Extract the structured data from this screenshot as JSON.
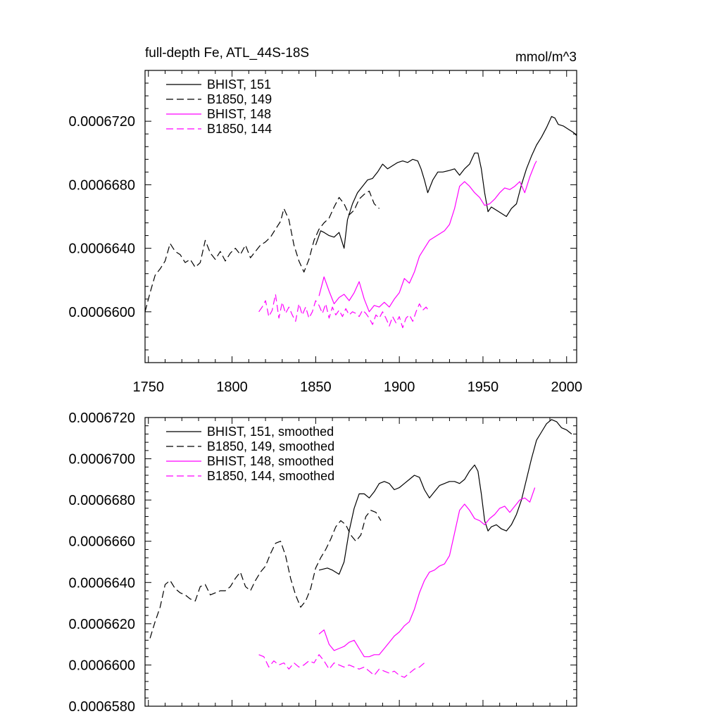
{
  "page": {
    "title_left": "full-depth Fe, ATL_44S-18S",
    "title_right": "mmol/m^3"
  },
  "colors": {
    "black": "#000000",
    "magenta": "#ff00ff"
  },
  "chart_data": [
    {
      "type": "line",
      "id": "top",
      "title": "full-depth Fe, ATL_44S-18S",
      "units": "mmol/m^3",
      "xlim": [
        1748,
        2006
      ],
      "ylim": [
        0.0006568,
        0.0006752
      ],
      "xticks": [
        1750,
        1800,
        1850,
        1900,
        1950,
        2000
      ],
      "xtick_labels": [
        "1750",
        "1800",
        "1850",
        "1900",
        "1950",
        "2000"
      ],
      "yticks": [
        0.00066,
        0.000664,
        0.000668,
        0.000672
      ],
      "ytick_labels": [
        "0.0006600",
        "0.0006640",
        "0.0006680",
        "0.0006720"
      ],
      "legend_position": "top-left",
      "series": [
        {
          "name": "BHIST, 151",
          "color": "#000000",
          "dash": "solid",
          "x": [
            1850,
            1853,
            1855,
            1858,
            1861,
            1864,
            1867,
            1869,
            1872,
            1875,
            1878,
            1881,
            1884,
            1887,
            1890,
            1893,
            1896,
            1899,
            1902,
            1905,
            1908,
            1911,
            1913,
            1915,
            1917,
            1920,
            1923,
            1926,
            1930,
            1933,
            1936,
            1939,
            1942,
            1945,
            1947,
            1949,
            1951,
            1953,
            1955,
            1958,
            1961,
            1964,
            1967,
            1970,
            1973,
            1976,
            1979,
            1982,
            1985,
            1988,
            1991,
            1993,
            1995,
            1998,
            2001,
            2004,
            2006
          ],
          "y": [
            0.0006642,
            0.0006651,
            0.000665,
            0.0006648,
            0.0006647,
            0.000665,
            0.000664,
            0.0006658,
            0.0006668,
            0.0006675,
            0.0006679,
            0.0006683,
            0.0006684,
            0.0006688,
            0.0006693,
            0.000669,
            0.0006692,
            0.0006694,
            0.0006695,
            0.0006694,
            0.0006696,
            0.0006695,
            0.000669,
            0.0006683,
            0.0006675,
            0.0006683,
            0.0006688,
            0.0006688,
            0.0006689,
            0.000669,
            0.0006686,
            0.000669,
            0.0006693,
            0.00067,
            0.00067,
            0.000669,
            0.0006675,
            0.0006663,
            0.0006666,
            0.0006664,
            0.0006662,
            0.000666,
            0.0006665,
            0.0006668,
            0.000668,
            0.000669,
            0.0006698,
            0.0006705,
            0.000671,
            0.0006716,
            0.0006723,
            0.0006722,
            0.0006718,
            0.0006717,
            0.0006715,
            0.0006713,
            0.0006711
          ]
        },
        {
          "name": "B1850, 149",
          "color": "#000000",
          "dash": "dashed",
          "x": [
            1748,
            1751,
            1754,
            1757,
            1760,
            1763,
            1766,
            1769,
            1772,
            1775,
            1778,
            1781,
            1784,
            1787,
            1790,
            1793,
            1796,
            1799,
            1802,
            1805,
            1808,
            1811,
            1814,
            1817,
            1820,
            1823,
            1826,
            1829,
            1831,
            1834,
            1837,
            1840,
            1843,
            1846,
            1849,
            1852,
            1855,
            1858,
            1861,
            1864,
            1867,
            1870,
            1873,
            1876,
            1879,
            1882,
            1885,
            1888
          ],
          "y": [
            0.00066,
            0.0006612,
            0.0006623,
            0.0006627,
            0.0006632,
            0.0006643,
            0.0006638,
            0.0006636,
            0.0006631,
            0.0006633,
            0.0006628,
            0.0006631,
            0.0006645,
            0.0006637,
            0.0006633,
            0.0006638,
            0.0006632,
            0.0006637,
            0.000664,
            0.0006636,
            0.0006642,
            0.0006634,
            0.0006638,
            0.0006642,
            0.0006644,
            0.0006647,
            0.0006652,
            0.0006657,
            0.0006665,
            0.0006658,
            0.0006642,
            0.0006632,
            0.0006625,
            0.0006633,
            0.0006645,
            0.0006652,
            0.0006656,
            0.0006659,
            0.0006666,
            0.0006672,
            0.0006668,
            0.0006661,
            0.0006664,
            0.0006671,
            0.0006674,
            0.0006676,
            0.0006668,
            0.0006665
          ]
        },
        {
          "name": "BHIST, 148",
          "color": "#ff00ff",
          "dash": "solid",
          "x": [
            1852,
            1855,
            1858,
            1861,
            1864,
            1867,
            1870,
            1873,
            1876,
            1879,
            1882,
            1885,
            1888,
            1891,
            1894,
            1897,
            1900,
            1903,
            1906,
            1909,
            1912,
            1915,
            1918,
            1921,
            1924,
            1927,
            1930,
            1933,
            1936,
            1939,
            1942,
            1945,
            1948,
            1951,
            1954,
            1957,
            1960,
            1963,
            1966,
            1969,
            1972,
            1975,
            1978,
            1981,
            1982
          ],
          "y": [
            0.000661,
            0.0006622,
            0.0006613,
            0.0006605,
            0.0006609,
            0.0006611,
            0.0006607,
            0.0006612,
            0.0006619,
            0.0006608,
            0.00066,
            0.0006604,
            0.0006603,
            0.0006606,
            0.0006603,
            0.0006608,
            0.0006612,
            0.0006621,
            0.0006618,
            0.0006625,
            0.0006635,
            0.000664,
            0.0006645,
            0.0006647,
            0.0006649,
            0.0006651,
            0.0006655,
            0.0006665,
            0.0006679,
            0.0006682,
            0.0006679,
            0.0006675,
            0.0006672,
            0.0006667,
            0.0006668,
            0.0006671,
            0.0006675,
            0.0006678,
            0.0006677,
            0.0006679,
            0.0006682,
            0.0006675,
            0.0006685,
            0.0006693,
            0.0006695
          ]
        },
        {
          "name": "B1850, 144",
          "color": "#ff00ff",
          "dash": "dashed",
          "x": [
            1816,
            1818,
            1820,
            1822,
            1824,
            1826,
            1828,
            1830,
            1832,
            1834,
            1836,
            1838,
            1840,
            1842,
            1844,
            1846,
            1848,
            1850,
            1852,
            1854,
            1856,
            1858,
            1860,
            1862,
            1864,
            1866,
            1868,
            1870,
            1872,
            1874,
            1876,
            1878,
            1880,
            1882,
            1884,
            1886,
            1888,
            1890,
            1892,
            1894,
            1896,
            1898,
            1900,
            1902,
            1904,
            1906,
            1908,
            1910,
            1912,
            1914,
            1916,
            1918
          ],
          "y": [
            0.00066,
            0.0006603,
            0.0006607,
            0.0006597,
            0.0006601,
            0.0006611,
            0.0006596,
            0.0006606,
            0.0006599,
            0.0006603,
            0.0006598,
            0.0006594,
            0.0006605,
            0.0006598,
            0.0006603,
            0.0006596,
            0.00066,
            0.0006607,
            0.0006604,
            0.0006599,
            0.0006605,
            0.0006596,
            0.0006603,
            0.0006598,
            0.0006601,
            0.0006597,
            0.0006602,
            0.0006598,
            0.00066,
            0.0006599,
            0.0006597,
            0.0006601,
            0.0006599,
            0.0006596,
            0.0006592,
            0.0006598,
            0.0006596,
            0.00066,
            0.0006596,
            0.0006591,
            0.0006597,
            0.0006593,
            0.0006597,
            0.000659,
            0.0006596,
            0.0006598,
            0.0006594,
            0.00066,
            0.0006605,
            0.0006601,
            0.0006603,
            0.00066
          ]
        }
      ]
    },
    {
      "type": "line",
      "id": "bottom",
      "xlim": [
        1748,
        2006
      ],
      "ylim": [
        0.000658,
        0.000672
      ],
      "xticks": [
        1750,
        1800,
        1850,
        1900,
        1950,
        2000
      ],
      "xtick_labels": [],
      "yticks": [
        0.000658,
        0.00066,
        0.000662,
        0.000664,
        0.000666,
        0.000668,
        0.00067,
        0.000672
      ],
      "ytick_labels": [
        "0.0006580",
        "0.0006600",
        "0.0006620",
        "0.0006640",
        "0.0006660",
        "0.0006680",
        "0.0006700",
        "0.0006720"
      ],
      "legend_position": "top-left",
      "series": [
        {
          "name": "BHIST, 151, smoothed",
          "color": "#000000",
          "dash": "solid",
          "x": [
            1852,
            1857,
            1860,
            1864,
            1867,
            1870,
            1873,
            1876,
            1879,
            1882,
            1885,
            1888,
            1891,
            1894,
            1897,
            1900,
            1903,
            1906,
            1909,
            1912,
            1915,
            1918,
            1921,
            1924,
            1927,
            1930,
            1933,
            1936,
            1939,
            1942,
            1945,
            1947,
            1949,
            1951,
            1953,
            1955,
            1958,
            1961,
            1964,
            1967,
            1970,
            1973,
            1976,
            1979,
            1982,
            1985,
            1988,
            1991,
            1994,
            1997,
            2000,
            2003
          ],
          "y": [
            0.0006646,
            0.0006647,
            0.0006646,
            0.0006644,
            0.000665,
            0.0006665,
            0.0006676,
            0.0006683,
            0.0006683,
            0.0006681,
            0.0006684,
            0.0006688,
            0.0006689,
            0.0006688,
            0.0006685,
            0.0006686,
            0.0006688,
            0.000669,
            0.0006692,
            0.0006691,
            0.0006685,
            0.0006681,
            0.0006684,
            0.0006687,
            0.0006688,
            0.0006689,
            0.0006689,
            0.0006688,
            0.000669,
            0.0006694,
            0.0006697,
            0.0006694,
            0.0006683,
            0.000667,
            0.0006665,
            0.0006667,
            0.0006668,
            0.0006666,
            0.0006665,
            0.0006668,
            0.0006673,
            0.000668,
            0.000669,
            0.00067,
            0.0006709,
            0.0006713,
            0.0006717,
            0.0006719,
            0.0006718,
            0.0006715,
            0.0006714,
            0.0006712
          ]
        },
        {
          "name": "B1850, 149, smoothed",
          "color": "#000000",
          "dash": "dashed",
          "x": [
            1751,
            1754,
            1757,
            1760,
            1763,
            1766,
            1769,
            1772,
            1775,
            1778,
            1781,
            1784,
            1787,
            1790,
            1793,
            1796,
            1799,
            1802,
            1805,
            1808,
            1811,
            1814,
            1817,
            1820,
            1823,
            1826,
            1829,
            1832,
            1835,
            1838,
            1841,
            1844,
            1847,
            1850,
            1853,
            1856,
            1859,
            1862,
            1865,
            1868,
            1871,
            1874,
            1877,
            1880,
            1883,
            1886,
            1889
          ],
          "y": [
            0.0006613,
            0.0006621,
            0.0006628,
            0.0006639,
            0.0006641,
            0.0006637,
            0.0006635,
            0.0006634,
            0.0006632,
            0.0006631,
            0.0006638,
            0.0006639,
            0.0006634,
            0.0006635,
            0.0006636,
            0.0006636,
            0.0006638,
            0.0006642,
            0.0006645,
            0.0006638,
            0.0006636,
            0.0006641,
            0.0006645,
            0.0006648,
            0.0006654,
            0.0006659,
            0.000666,
            0.0006653,
            0.0006642,
            0.0006634,
            0.0006628,
            0.0006631,
            0.0006637,
            0.0006647,
            0.0006652,
            0.0006656,
            0.0006661,
            0.0006667,
            0.000667,
            0.0006668,
            0.0006663,
            0.000666,
            0.0006663,
            0.0006672,
            0.0006675,
            0.0006674,
            0.000667
          ]
        },
        {
          "name": "BHIST, 148, smoothed",
          "color": "#ff00ff",
          "dash": "solid",
          "x": [
            1852,
            1855,
            1858,
            1861,
            1864,
            1867,
            1870,
            1873,
            1876,
            1879,
            1882,
            1885,
            1888,
            1891,
            1894,
            1897,
            1900,
            1903,
            1906,
            1909,
            1912,
            1915,
            1918,
            1921,
            1924,
            1927,
            1930,
            1933,
            1936,
            1939,
            1942,
            1945,
            1948,
            1951,
            1954,
            1957,
            1960,
            1963,
            1966,
            1969,
            1972,
            1975,
            1978,
            1981
          ],
          "y": [
            0.0006615,
            0.0006617,
            0.000661,
            0.0006607,
            0.0006608,
            0.0006609,
            0.0006611,
            0.0006612,
            0.0006608,
            0.0006604,
            0.0006604,
            0.0006605,
            0.0006605,
            0.0006608,
            0.0006611,
            0.0006614,
            0.0006616,
            0.0006619,
            0.0006621,
            0.0006627,
            0.0006635,
            0.0006641,
            0.0006645,
            0.0006646,
            0.0006648,
            0.0006649,
            0.0006653,
            0.0006664,
            0.0006675,
            0.0006678,
            0.0006675,
            0.0006671,
            0.000667,
            0.0006668,
            0.0006671,
            0.0006673,
            0.0006676,
            0.0006677,
            0.0006674,
            0.0006677,
            0.000668,
            0.0006681,
            0.0006679,
            0.0006686
          ]
        },
        {
          "name": "B1850, 144, smoothed",
          "color": "#ff00ff",
          "dash": "dashed",
          "x": [
            1816,
            1819,
            1822,
            1825,
            1828,
            1831,
            1834,
            1837,
            1840,
            1843,
            1846,
            1849,
            1852,
            1855,
            1858,
            1861,
            1864,
            1867,
            1870,
            1873,
            1876,
            1879,
            1882,
            1885,
            1888,
            1891,
            1894,
            1897,
            1900,
            1903,
            1906,
            1909,
            1912,
            1915
          ],
          "y": [
            0.0006605,
            0.0006604,
            0.0006599,
            0.0006602,
            0.00066,
            0.0006601,
            0.0006598,
            0.0006601,
            0.0006599,
            0.00066,
            0.0006602,
            0.0006601,
            0.0006605,
            0.0006602,
            0.0006598,
            0.0006601,
            0.00066,
            0.0006599,
            0.00066,
            0.0006599,
            0.0006598,
            0.0006599,
            0.0006597,
            0.0006595,
            0.0006598,
            0.0006597,
            0.0006596,
            0.0006597,
            0.0006595,
            0.0006594,
            0.0006596,
            0.0006598,
            0.0006599,
            0.0006601
          ]
        }
      ]
    }
  ]
}
